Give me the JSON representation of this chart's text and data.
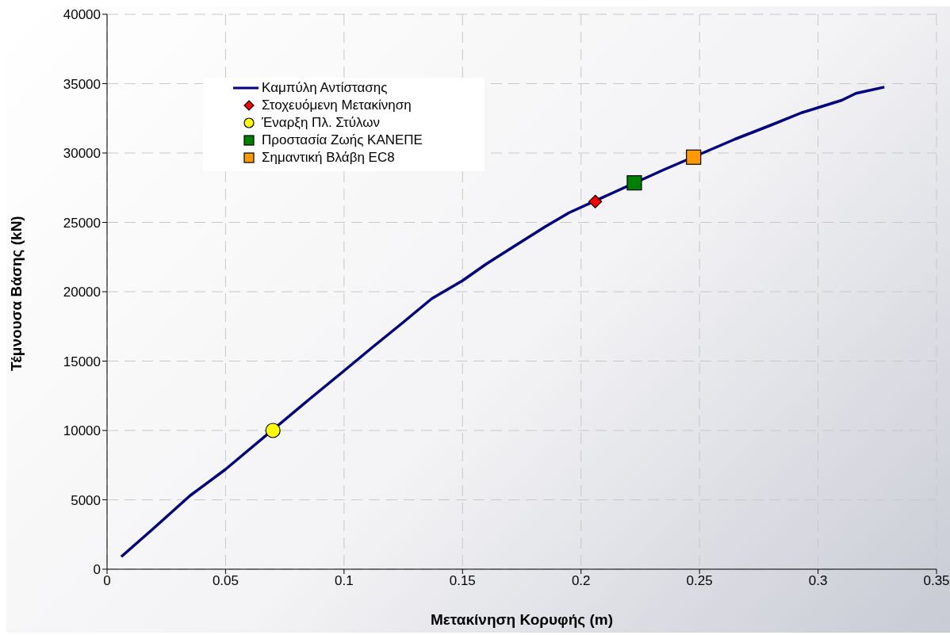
{
  "chart_data": {
    "type": "line",
    "xlabel": "Μετακίνηση Κορυφής (m)",
    "ylabel": "Τέμνουσα Βάσης (kN)",
    "xlim": [
      0,
      0.35
    ],
    "xticks": [
      0,
      0.05,
      0.1,
      0.15,
      0.2,
      0.25,
      0.3,
      0.35
    ],
    "ylim": [
      0,
      40000
    ],
    "yticks": [
      0,
      5000,
      10000,
      15000,
      20000,
      25000,
      30000,
      35000,
      40000
    ],
    "grid": true,
    "legend": "top left",
    "line_style": "solid",
    "series": [
      {
        "name": "Καμπύλη Αντίστασης",
        "type": "line",
        "marker": "none",
        "color": "#000080",
        "x": [
          0.006,
          0.02,
          0.035,
          0.05,
          0.085,
          0.1,
          0.112,
          0.125,
          0.137,
          0.15,
          0.16,
          0.172,
          0.185,
          0.195,
          0.235,
          0.265,
          0.28,
          0.293,
          0.31,
          0.316,
          0.328
        ],
        "values": [
          900,
          3000,
          5300,
          7200,
          12200,
          14300,
          16000,
          17800,
          19500,
          20800,
          22000,
          23300,
          24700,
          25700,
          28800,
          31000,
          32000,
          32900,
          33800,
          34300,
          34750
        ]
      },
      {
        "name": "Στοχευόμενη Μετακίνηση",
        "type": "scatter",
        "marker": "diamond",
        "color": "#ff0000",
        "x": [
          0.206
        ],
        "values": [
          26500
        ]
      },
      {
        "name": "Έναρξη Πλ. Στύλων",
        "type": "scatter",
        "marker": "circle",
        "color": "#ffff00",
        "x": [
          0.07
        ],
        "values": [
          10000
        ]
      },
      {
        "name": "Προστασία Ζωής ΚΑΝΕΠΕ",
        "type": "scatter",
        "marker": "square",
        "color": "#008000",
        "x": [
          0.2225
        ],
        "values": [
          27850
        ]
      },
      {
        "name": "Σημαντική Βλάβη EC8",
        "type": "scatter",
        "marker": "square",
        "color": "#ff9900",
        "x": [
          0.2475
        ],
        "values": [
          29700
        ]
      }
    ]
  }
}
